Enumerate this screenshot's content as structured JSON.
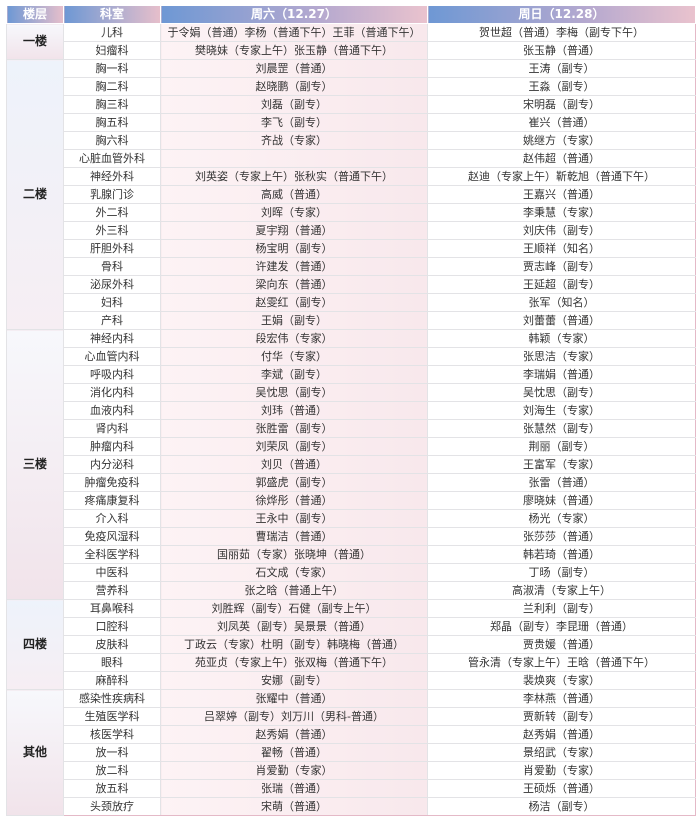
{
  "header": {
    "floor": "楼层",
    "dept": "科室",
    "sat": "周六（12.27）",
    "sun": "周日（12.28）"
  },
  "colors": {
    "header_start": "#6e98d4",
    "header_end": "#e7bfcb",
    "sat_bg": "#fdf3f5"
  },
  "groups": [
    {
      "floor": "一楼",
      "rows": [
        {
          "dept": "儿科",
          "sat": "于令娟（普通）李杨（普通下午）王菲（普通下午）",
          "sun": "贺世超（普通）李梅（副专下午）"
        },
        {
          "dept": "妇瘤科",
          "sat": "樊晓妹（专家上午）张玉静（普通下午）",
          "sun": "张玉静（普通）"
        }
      ]
    },
    {
      "floor": "二楼",
      "rows": [
        {
          "dept": "胸一科",
          "sat": "刘晨罡（普通）",
          "sun": "王涛（副专）"
        },
        {
          "dept": "胸二科",
          "sat": "赵晓鹏（副专）",
          "sun": "王淼（副专）"
        },
        {
          "dept": "胸三科",
          "sat": "刘磊（副专）",
          "sun": "宋明磊（副专）"
        },
        {
          "dept": "胸五科",
          "sat": "李飞（副专）",
          "sun": "崔兴（普通）"
        },
        {
          "dept": "胸六科",
          "sat": "齐战（专家）",
          "sun": "姚继方（专家）"
        },
        {
          "dept": "心脏血管外科",
          "sat": "",
          "sun": "赵伟超（普通）"
        },
        {
          "dept": "神经外科",
          "sat": "刘英姿（专家上午）张秋实（普通下午）",
          "sun": "赵迪（专家上午）靳乾旭（普通下午）"
        },
        {
          "dept": "乳腺门诊",
          "sat": "高威（普通）",
          "sun": "王嘉兴（普通）"
        },
        {
          "dept": "外二科",
          "sat": "刘晖（专家）",
          "sun": "李秉慧（专家）"
        },
        {
          "dept": "外三科",
          "sat": "夏宇翔（普通）",
          "sun": "刘庆伟（副专）"
        },
        {
          "dept": "肝胆外科",
          "sat": "杨宝明（副专）",
          "sun": "王顺祥（知名）"
        },
        {
          "dept": "骨科",
          "sat": "许建发（普通）",
          "sun": "贾志峰（副专）"
        },
        {
          "dept": "泌尿外科",
          "sat": "梁向东（普通）",
          "sun": "王延超（副专）"
        },
        {
          "dept": "妇科",
          "sat": "赵雯红（副专）",
          "sun": "张军（知名）"
        },
        {
          "dept": "产科",
          "sat": "王娟（副专）",
          "sun": "刘蕾蕾（普通）"
        }
      ]
    },
    {
      "floor": "三楼",
      "rows": [
        {
          "dept": "神经内科",
          "sat": "段宏伟（专家）",
          "sun": "韩颖（专家）"
        },
        {
          "dept": "心血管内科",
          "sat": "付华（专家）",
          "sun": "张思洁（专家）"
        },
        {
          "dept": "呼吸内科",
          "sat": "李斌（副专）",
          "sun": "李瑞娟（普通）"
        },
        {
          "dept": "消化内科",
          "sat": "吴忱思（副专）",
          "sun": "吴忱思（副专）"
        },
        {
          "dept": "血液内科",
          "sat": "刘玮（普通）",
          "sun": "刘海生（专家）"
        },
        {
          "dept": "肾内科",
          "sat": "张胜雷（副专）",
          "sun": "张慧然（副专）"
        },
        {
          "dept": "肿瘤内科",
          "sat": "刘荣凤（副专）",
          "sun": "荆丽（副专）"
        },
        {
          "dept": "内分泌科",
          "sat": "刘贝（普通）",
          "sun": "王富军（专家）"
        },
        {
          "dept": "肿瘤免疫科",
          "sat": "郭盛虎（副专）",
          "sun": "张雷（普通）"
        },
        {
          "dept": "疼痛康复科",
          "sat": "徐烨彤（普通）",
          "sun": "廖晓妹（普通）"
        },
        {
          "dept": "介入科",
          "sat": "王永中（副专）",
          "sun": "杨光（专家）"
        },
        {
          "dept": "免疫风湿科",
          "sat": "曹瑞洁（普通）",
          "sun": "张莎莎（普通）"
        },
        {
          "dept": "全科医学科",
          "sat": "国丽茹（专家）张晓坤（普通）",
          "sun": "韩若琦（普通）"
        },
        {
          "dept": "中医科",
          "sat": "石文成（专家）",
          "sun": "丁旸（副专）"
        },
        {
          "dept": "营养科",
          "sat": "张之晗（普通上午）",
          "sun": "高淑清（专家上午）"
        }
      ]
    },
    {
      "floor": "四楼",
      "rows": [
        {
          "dept": "耳鼻喉科",
          "sat": "刘胜辉（副专）石健（副专上午）",
          "sun": "兰利利（副专）"
        },
        {
          "dept": "口腔科",
          "sat": "刘凤英（副专）吴景景（普通）",
          "sun": "郑晶（副专）李昆珊（普通）"
        },
        {
          "dept": "皮肤科",
          "sat": "丁政云（专家）杜明（副专）韩晓梅（普通）",
          "sun": "贾贵媛（普通）"
        },
        {
          "dept": "眼科",
          "sat": "苑亚贞（专家上午）张双梅（普通下午）",
          "sun": "管永清（专家上午）王晗（普通下午）"
        },
        {
          "dept": "麻醉科",
          "sat": "安娜（副专）",
          "sun": "裴焕爽（专家）"
        }
      ]
    },
    {
      "floor": "其他",
      "rows": [
        {
          "dept": "感染性疾病科",
          "sat": "张耀中（普通）",
          "sun": "李林燕（普通）"
        },
        {
          "dept": "生殖医学科",
          "sat": "吕翠婷（副专）刘万川（男科-普通）",
          "sun": "贾新转（副专）"
        },
        {
          "dept": "核医学科",
          "sat": "赵秀娟（普通）",
          "sun": "赵秀娟（普通）"
        },
        {
          "dept": "放一科",
          "sat": "翟畅（普通）",
          "sun": "景绍武（专家）"
        },
        {
          "dept": "放二科",
          "sat": "肖爱勤（专家）",
          "sun": "肖爱勤（专家）"
        },
        {
          "dept": "放五科",
          "sat": "张瑞（普通）",
          "sun": "王硕烁（普通）"
        },
        {
          "dept": "头颈放疗",
          "sat": "宋萌（普通）",
          "sun": "杨洁（副专）"
        }
      ]
    }
  ]
}
